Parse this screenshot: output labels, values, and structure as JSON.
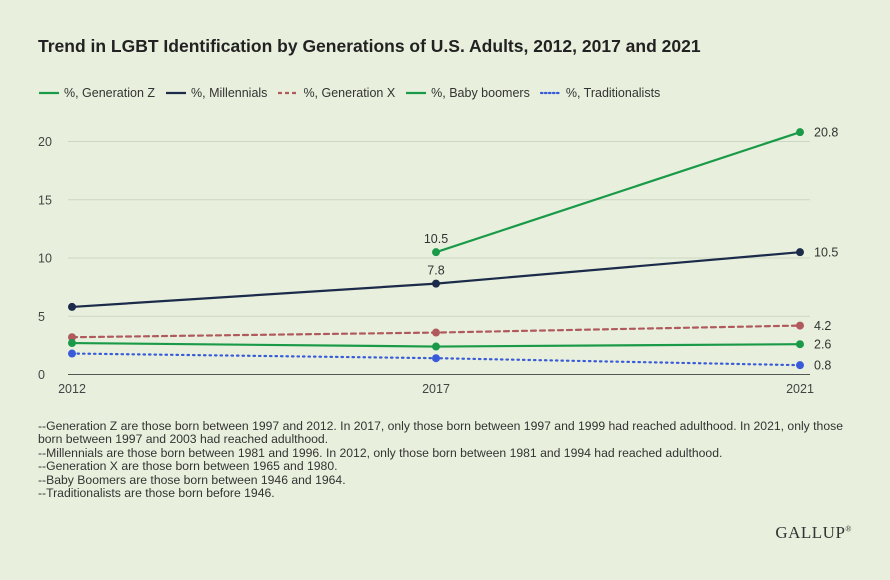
{
  "title": "Trend in LGBT Identification by Generations of U.S. Adults, 2012, 2017 and 2021",
  "legend": [
    {
      "label": "%, Generation Z",
      "color": "#1a9a48",
      "dash": "solid"
    },
    {
      "label": "%, Millennials",
      "color": "#1c2b4a",
      "dash": "solid"
    },
    {
      "label": "%, Generation X",
      "color": "#b05a5e",
      "dash": "dashed"
    },
    {
      "label": "%, Baby boomers",
      "color": "#1a9a48",
      "dash": "solid"
    },
    {
      "label": "%, Traditionalists",
      "color": "#3a5bd9",
      "dash": "dotted"
    }
  ],
  "chart_data": {
    "type": "line",
    "x": [
      "2012",
      "2017",
      "2021"
    ],
    "ylim": [
      0,
      22
    ],
    "yticks": [
      "0",
      "5",
      "10",
      "15",
      "20"
    ],
    "grid": true,
    "legend_position": "top",
    "series": [
      {
        "name": "%, Generation Z",
        "color": "#1a9a48",
        "dash": "solid",
        "values": [
          null,
          10.5,
          20.8
        ]
      },
      {
        "name": "%, Millennials",
        "color": "#1c2b4a",
        "dash": "solid",
        "values": [
          5.8,
          7.8,
          10.5
        ]
      },
      {
        "name": "%, Generation X",
        "color": "#b05a5e",
        "dash": "dashed",
        "values": [
          3.2,
          3.6,
          4.2
        ]
      },
      {
        "name": "%, Baby boomers",
        "color": "#1a9a48",
        "dash": "solid",
        "values": [
          2.7,
          2.4,
          2.6
        ]
      },
      {
        "name": "%, Traditionalists",
        "color": "#3a5bd9",
        "dash": "dotted",
        "values": [
          1.8,
          1.4,
          0.8
        ]
      }
    ],
    "data_labels": [
      {
        "series": 0,
        "point": 1,
        "text": "10.5",
        "pos": "above"
      },
      {
        "series": 0,
        "point": 2,
        "text": "20.8",
        "pos": "right"
      },
      {
        "series": 1,
        "point": 1,
        "text": "7.8",
        "pos": "above"
      },
      {
        "series": 1,
        "point": 2,
        "text": "10.5",
        "pos": "right"
      },
      {
        "series": 2,
        "point": 2,
        "text": "4.2",
        "pos": "right"
      },
      {
        "series": 3,
        "point": 2,
        "text": "2.6",
        "pos": "right"
      },
      {
        "series": 4,
        "point": 2,
        "text": "0.8",
        "pos": "right"
      }
    ]
  },
  "footnotes": [
    "--Generation Z are those born between 1997 and 2012. In 2017, only those born between 1997 and 1999 had reached adulthood. In 2021, only those born between 1997 and 2003 had reached adulthood.",
    "--Millennials are those born between 1981 and 1996. In 2012, only those born between 1981 and 1994 had reached adulthood.",
    "--Generation X are those born between 1965 and 1980.",
    "--Baby Boomers are those born between 1946 and 1964.",
    "--Traditionalists are those born before 1946."
  ],
  "logo": {
    "text": "GALLUP",
    "mark": "®"
  }
}
